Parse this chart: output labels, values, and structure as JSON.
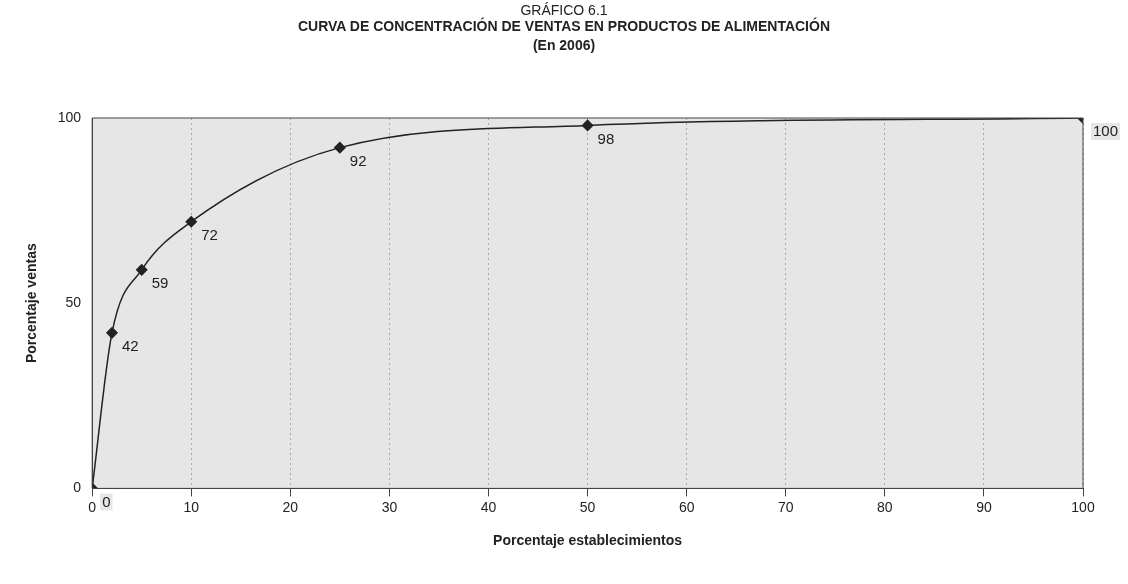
{
  "chart_data": {
    "type": "line",
    "annotations": [
      "GRÁFICO 6.1"
    ],
    "title": "CURVA DE CONCENTRACIÓN DE VENTAS EN PRODUCTOS DE ALIMENTACIÓN",
    "subtitle": "(En 2006)",
    "xlabel": "Porcentaje establecimientos",
    "ylabel": "Porcentaje ventas",
    "x": [
      0,
      2,
      5,
      10,
      25,
      50,
      100
    ],
    "series": [
      {
        "color": "#222222",
        "values": [
          0,
          42,
          59,
          72,
          92,
          98,
          100
        ]
      }
    ],
    "xlim": [
      0,
      100
    ],
    "xticks": [
      0,
      10,
      20,
      30,
      40,
      50,
      60,
      70,
      80,
      90,
      100
    ],
    "ylim": [
      0,
      100
    ],
    "yticks": [
      0,
      50,
      100
    ],
    "grid": "x",
    "legend": false,
    "marker": "diamond",
    "line_style": "solid",
    "data_labels": true
  }
}
